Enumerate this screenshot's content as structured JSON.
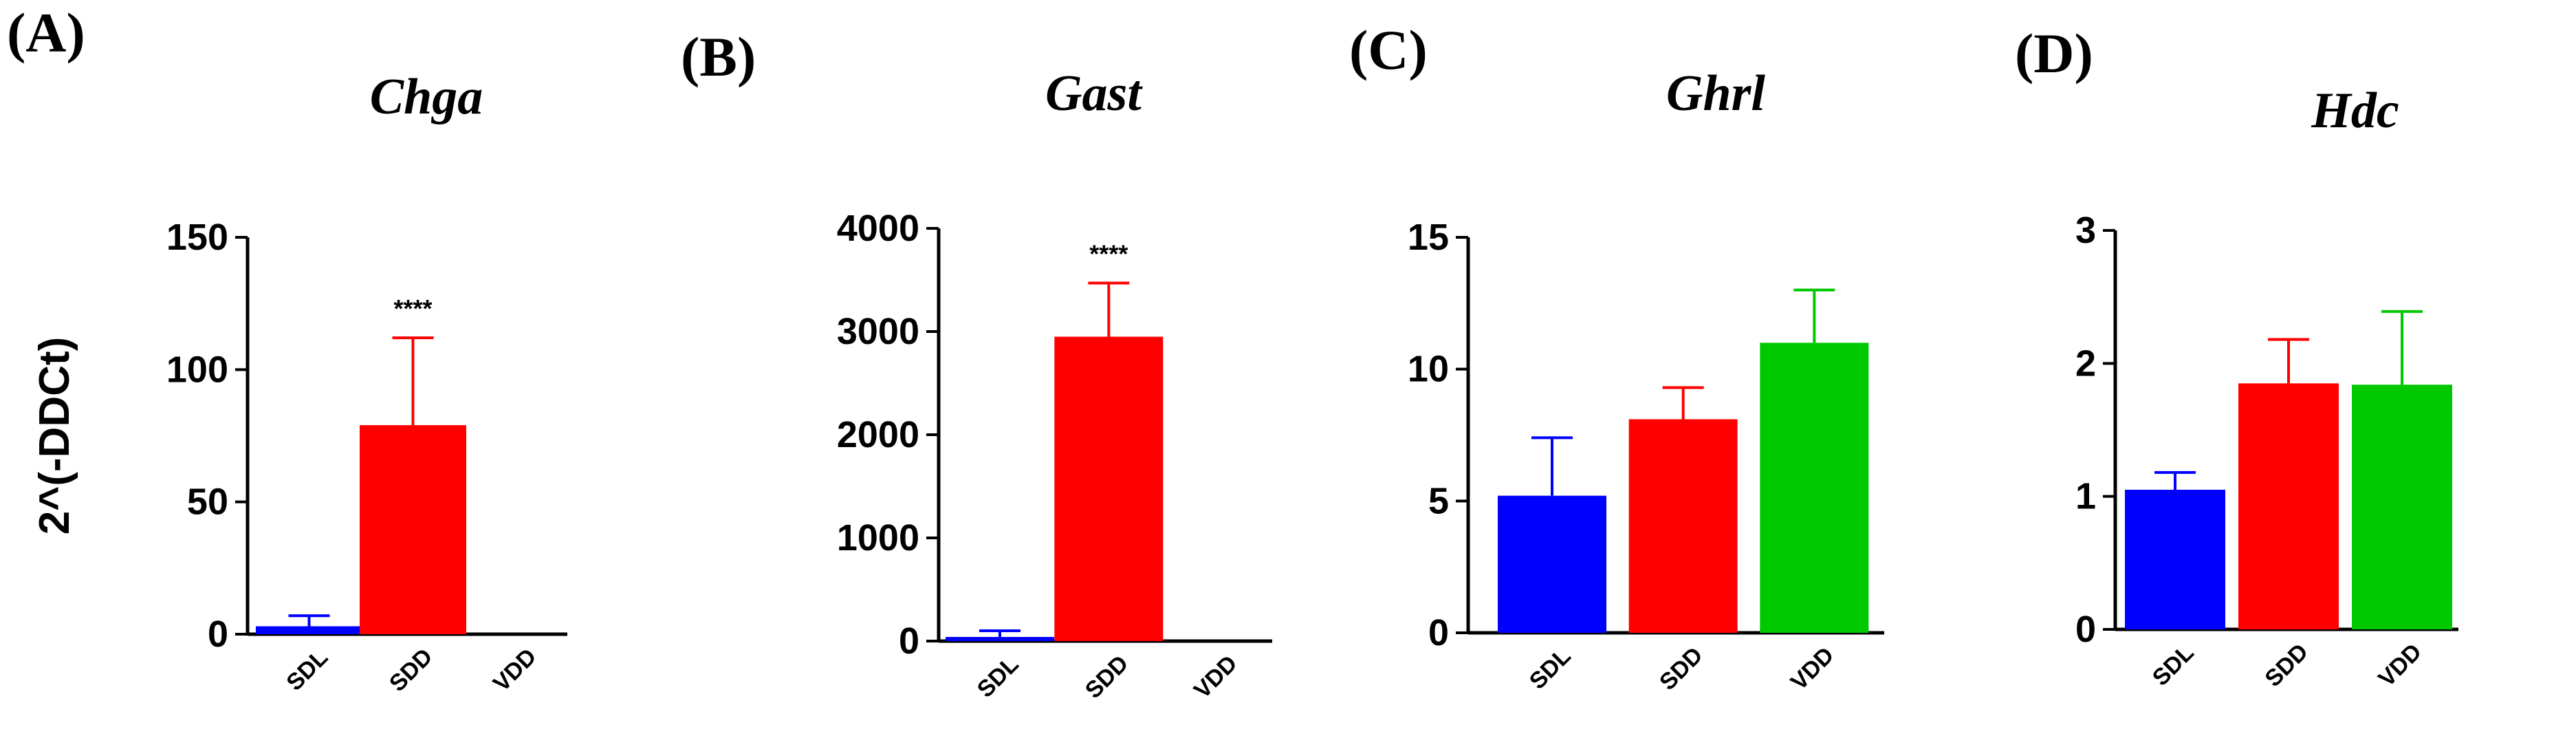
{
  "chart_data": [
    {
      "panel": "(A)",
      "type": "bar",
      "title": "Chga",
      "ylabel": "2^(-DDCt)",
      "xlabel": "",
      "categories": [
        "SDL",
        "SDD",
        "VDD"
      ],
      "values": [
        3,
        79,
        0
      ],
      "errors": [
        4,
        33,
        0
      ],
      "colors": [
        "#0000ff",
        "#ff0000",
        "#00c800"
      ],
      "ylim": [
        0,
        150
      ],
      "yticks": [
        0,
        50,
        100,
        150
      ],
      "ytick_labels": [
        "0",
        "50",
        "100",
        "150"
      ],
      "significance": [
        {
          "category": "SDD",
          "label": "****"
        }
      ]
    },
    {
      "panel": "(B)",
      "type": "bar",
      "title": "Gast",
      "ylabel": "",
      "xlabel": "",
      "categories": [
        "SDL",
        "SDD",
        "VDD"
      ],
      "values": [
        40,
        2950,
        0
      ],
      "errors": [
        60,
        520,
        0
      ],
      "colors": [
        "#0000ff",
        "#ff0000",
        "#00c800"
      ],
      "ylim": [
        0,
        4000
      ],
      "yticks": [
        0,
        1000,
        2000,
        3000,
        4000
      ],
      "ytick_labels": [
        "0",
        "1000",
        "2000",
        "3000",
        "4000"
      ],
      "significance": [
        {
          "category": "SDD",
          "label": "****"
        }
      ]
    },
    {
      "panel": "(C)",
      "type": "bar",
      "title": "Ghrl",
      "ylabel": "",
      "xlabel": "",
      "categories": [
        "SDL",
        "SDD",
        "VDD"
      ],
      "values": [
        5.2,
        8.1,
        11.0
      ],
      "errors": [
        2.2,
        1.2,
        2.0
      ],
      "colors": [
        "#0000ff",
        "#ff0000",
        "#00c800"
      ],
      "ylim": [
        0,
        15
      ],
      "yticks": [
        0,
        5,
        10,
        15
      ],
      "ytick_labels": [
        "0",
        "5",
        "10",
        "15"
      ],
      "significance": []
    },
    {
      "panel": "(D)",
      "type": "bar",
      "title": "Hdc",
      "ylabel": "",
      "xlabel": "",
      "categories": [
        "SDL",
        "SDD",
        "VDD"
      ],
      "values": [
        1.05,
        1.85,
        1.84
      ],
      "errors": [
        0.13,
        0.33,
        0.55
      ],
      "colors": [
        "#0000ff",
        "#ff0000",
        "#00c800"
      ],
      "ylim": [
        0,
        3
      ],
      "yticks": [
        0,
        1,
        2,
        3
      ],
      "ytick_labels": [
        "0",
        "1",
        "2",
        "3"
      ],
      "significance": []
    }
  ]
}
